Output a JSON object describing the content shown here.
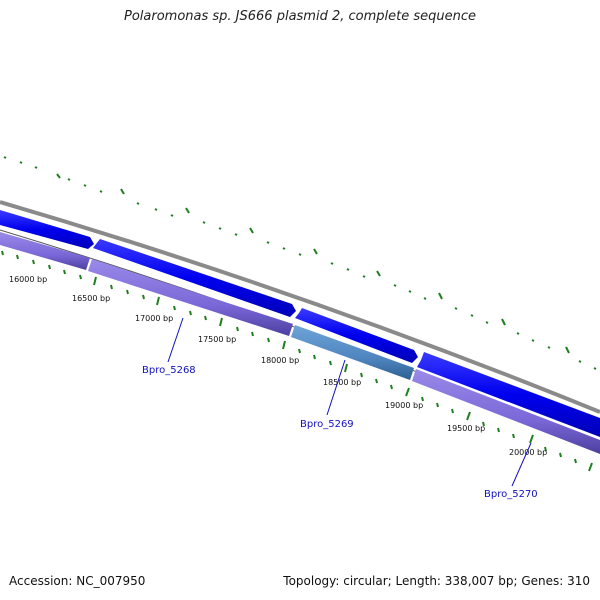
{
  "title": "Polaromonas sp. JS666 plasmid 2, complete sequence",
  "footer": {
    "accession": "Accession: NC_007950",
    "summary": "Topology: circular; Length: 338,007 bp; Genes: 310"
  },
  "ticks": [
    {
      "label": "16000 bp"
    },
    {
      "label": "16500 bp"
    },
    {
      "label": "17000 bp"
    },
    {
      "label": "17500 bp"
    },
    {
      "label": "18000 bp"
    },
    {
      "label": "18500 bp"
    },
    {
      "label": "19000 bp"
    },
    {
      "label": "19500 bp"
    },
    {
      "label": "20000 bp"
    }
  ],
  "genes": [
    {
      "name": "Bpro_5268"
    },
    {
      "name": "Bpro_5269"
    },
    {
      "name": "Bpro_5270"
    }
  ],
  "colors": {
    "backbone": "#8a8a8a",
    "forward_feature": "#0000ee",
    "gene_bar": "#7b68d8",
    "gene_bar_highlight": "#4f86c0",
    "tick": "#1f7f1f",
    "gene_label": "#1010c0"
  }
}
